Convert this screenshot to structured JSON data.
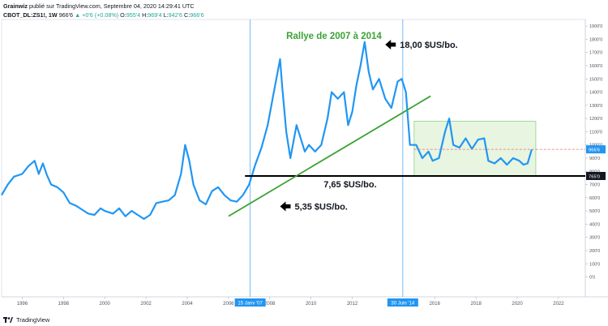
{
  "header": {
    "author": "Grainwiz",
    "published": "publié sur TradingView.com, Septembre 04, 2020 14:29:41 UTC",
    "symbol": "CBOT_DL:ZS1!, 1W",
    "price": "966'6",
    "change": "▲ +0'6 (+0.08%)",
    "o_label": "O:",
    "o_value": "955'4",
    "h_label": "H:",
    "h_value": "969'4",
    "l_label": "L:",
    "l_value": "942'6",
    "c_label": "C:",
    "c_value": "966'6"
  },
  "footer": {
    "brand": "TradingView"
  },
  "colors": {
    "price_line": "#2196f3",
    "trendline": "#3aa335",
    "support": "#000000",
    "box_fill": "#e8f5e0",
    "box_border": "#8fd18a",
    "vline": "#64b5f6",
    "axis_text": "#50535e",
    "annotation_green": "#3aa335",
    "current_badge": "#2196f3",
    "support_badge": "#131722"
  },
  "chart_data": {
    "type": "line",
    "title": "Rallye de 2007 à 2014",
    "x_axis": {
      "range": [
        1995.0,
        2023.3
      ],
      "ticks": [
        1996,
        1998,
        2000,
        2002,
        2004,
        2006,
        2008,
        2010,
        2012,
        2016,
        2018,
        2020,
        2022
      ],
      "tick_labels": [
        "1996",
        "1998",
        "2000",
        "2002",
        "2004",
        "2006",
        "2008",
        "2010",
        "2012",
        "2016",
        "2018",
        "2020",
        "2022"
      ]
    },
    "y_axis": {
      "range": [
        -150,
        1950
      ],
      "ticks": [
        0,
        100,
        200,
        300,
        400,
        500,
        600,
        700,
        800,
        900,
        1000,
        1100,
        1200,
        1300,
        1400,
        1500,
        1600,
        1700,
        1800,
        1900
      ],
      "tick_labels": [
        "0'0",
        "100'0",
        "200'0",
        "300'0",
        "400'0",
        "500'0",
        "600'0",
        "700'0",
        "800'0",
        "900'0",
        "1000'0",
        "1100'0",
        "1200'0",
        "1300'0",
        "1400'0",
        "1500'0",
        "1600'0",
        "1700'0",
        "1800'0",
        "1900'0"
      ]
    },
    "series": [
      {
        "x": [
          1995.0,
          1995.3,
          1995.6,
          1996.0,
          1996.3,
          1996.6,
          1996.8,
          1997.0,
          1997.2,
          1997.4,
          1997.7,
          1998.0,
          1998.3,
          1998.6,
          1998.9,
          1999.2,
          1999.5,
          1999.8,
          2000.0,
          2000.4,
          2000.7,
          2001.0,
          2001.3,
          2001.6,
          2001.9,
          2002.2,
          2002.5,
          2002.8,
          2003.1,
          2003.4,
          2003.7,
          2003.9,
          2004.1,
          2004.3,
          2004.6,
          2004.9,
          2005.2,
          2005.5,
          2005.8,
          2006.1,
          2006.4,
          2006.7,
          2007.0,
          2007.3,
          2007.6,
          2007.9,
          2008.2,
          2008.5,
          2008.6,
          2008.8,
          2009.0,
          2009.3,
          2009.5,
          2009.7,
          2009.9,
          2010.2,
          2010.5,
          2010.8,
          2011.0,
          2011.3,
          2011.6,
          2011.8,
          2012.0,
          2012.2,
          2012.4,
          2012.6,
          2012.8,
          2013.0,
          2013.3,
          2013.6,
          2013.9,
          2014.2,
          2014.4,
          2014.6,
          2014.8,
          2015.1,
          2015.4,
          2015.7,
          2015.9,
          2016.2,
          2016.5,
          2016.7,
          2016.9,
          2017.2,
          2017.5,
          2017.8,
          2018.1,
          2018.4,
          2018.6,
          2018.9,
          2019.2,
          2019.5,
          2019.8,
          2020.1,
          2020.3,
          2020.5,
          2020.7
        ],
        "y": [
          620,
          700,
          760,
          780,
          840,
          880,
          780,
          860,
          770,
          700,
          680,
          640,
          560,
          540,
          510,
          480,
          470,
          520,
          500,
          480,
          520,
          460,
          500,
          470,
          440,
          470,
          560,
          570,
          580,
          620,
          780,
          1000,
          880,
          700,
          580,
          550,
          650,
          680,
          620,
          580,
          570,
          620,
          700,
          850,
          980,
          1150,
          1400,
          1650,
          1450,
          1100,
          900,
          1150,
          1050,
          950,
          1000,
          950,
          1000,
          1200,
          1400,
          1350,
          1400,
          1150,
          1250,
          1450,
          1600,
          1780,
          1550,
          1420,
          1500,
          1350,
          1280,
          1480,
          1500,
          1400,
          1000,
          1000,
          900,
          950,
          880,
          900,
          1100,
          1200,
          1000,
          980,
          1050,
          970,
          1040,
          1050,
          880,
          860,
          900,
          850,
          900,
          880,
          850,
          860,
          966
        ]
      }
    ],
    "support": {
      "y": 765,
      "label": "7,65 $US/bo.",
      "x_start": 2006.8,
      "axis_badge": "765'0"
    },
    "current": {
      "y": 966.6,
      "axis_badge": "966'6"
    },
    "dashed_level": {
      "y": 966.6,
      "x_start": 2015.0
    },
    "trendline": {
      "x1": 2006.0,
      "y1": 460,
      "x2": 2015.8,
      "y2": 1370
    },
    "range_box": {
      "x1": 2015.0,
      "x2": 2020.9,
      "y1": 765,
      "y2": 1180
    },
    "vlines": [
      {
        "x": 2007.05,
        "label": "15 Janv '07"
      },
      {
        "x": 2014.45,
        "label": "30 Juin '14"
      }
    ],
    "annotations": [
      {
        "text": "18,00 $US/bo.",
        "x": 2013.6,
        "y": 1760,
        "arrow": true
      },
      {
        "text": "5,35 $US/bo.",
        "x": 2008.5,
        "y": 535,
        "arrow": true
      },
      {
        "text": "7,65 $US/bo.",
        "x": 2011.9,
        "y": 705,
        "arrow": false
      }
    ]
  }
}
